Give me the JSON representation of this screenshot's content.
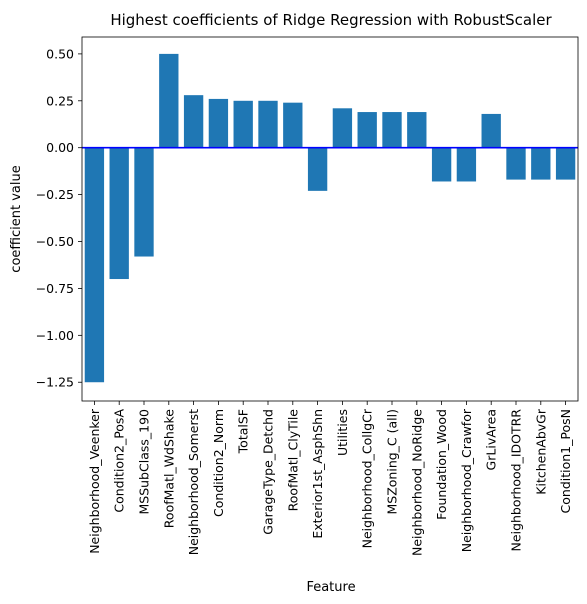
{
  "chart_data": {
    "type": "bar",
    "title": "Highest coefficients of Ridge Regression with RobustScaler",
    "xlabel": "Feature",
    "ylabel": "coefficient value",
    "ylim": [
      -1.35,
      0.59
    ],
    "yticks": [
      0.5,
      0.25,
      0.0,
      -0.25,
      -0.5,
      -0.75,
      -1.0,
      -1.25
    ],
    "ytick_labels": [
      "0.50",
      "0.25",
      "0.00",
      "−0.25",
      "−0.50",
      "−0.75",
      "−1.00",
      "−1.25"
    ],
    "grid": false,
    "legend": "none",
    "bar_color": "#1f77b4",
    "reference_line": {
      "y": 0.0,
      "color": "#0000ff"
    },
    "categories": [
      "Neighborhood_Veenker",
      "Condition2_PosA",
      "MSSubClass_190",
      "RoofMatl_WdShake",
      "Neighborhood_Somerst",
      "Condition2_Norm",
      "TotalSF",
      "GarageType_Detchd",
      "RoofMatl_ClyTile",
      "Exterior1st_AsphShn",
      "Utilities",
      "Neighborhood_CollgCr",
      "MSZoning_C (all)",
      "Neighborhood_NoRidge",
      "Foundation_Wood",
      "Neighborhood_Crawfor",
      "GrLivArea",
      "Neighborhood_IDOTRR",
      "KitchenAbvGr",
      "Condition1_PosN"
    ],
    "values": [
      -1.25,
      -0.7,
      -0.58,
      0.5,
      0.28,
      0.26,
      0.25,
      0.25,
      0.24,
      -0.23,
      0.21,
      0.19,
      0.19,
      0.19,
      -0.18,
      -0.18,
      0.18,
      -0.17,
      -0.17,
      -0.17
    ]
  }
}
